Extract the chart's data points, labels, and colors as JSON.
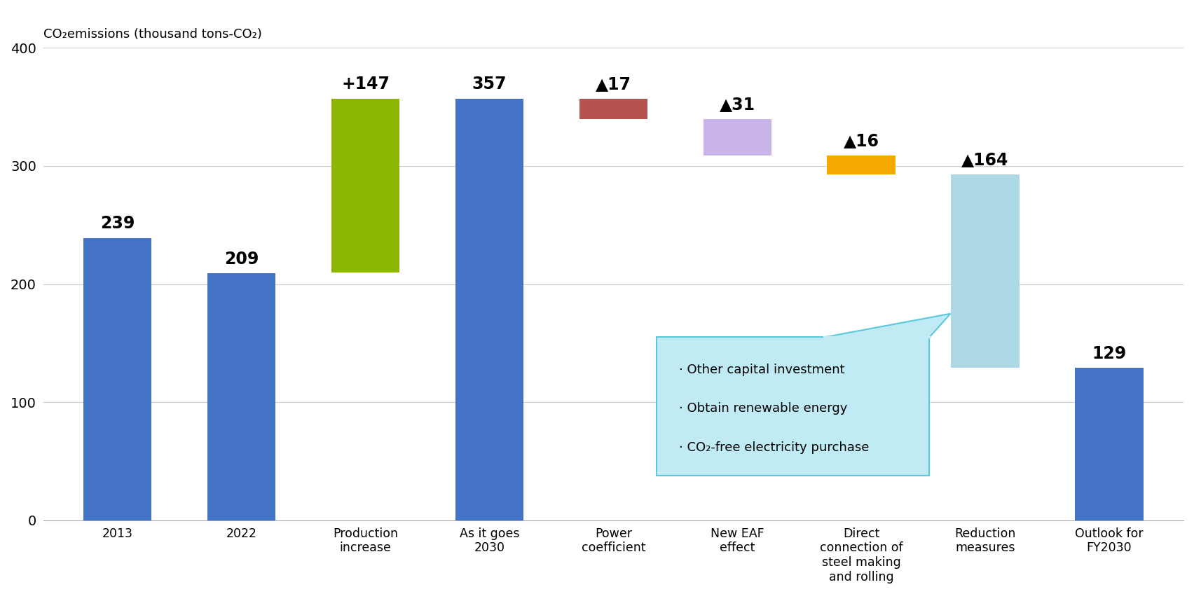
{
  "title": "CO₂emissions (thousand tons-CO₂)",
  "ylim": [
    0,
    400
  ],
  "yticks": [
    0,
    100,
    200,
    300,
    400
  ],
  "categories": [
    "2013",
    "2022",
    "Production\nincrease",
    "As it goes\n2030",
    "Power\ncoefficient",
    "New EAF\neffect",
    "Direct\nconnection of\nsteel making\nand rolling",
    "Reduction\nmeasures",
    "Outlook for\nFY2030"
  ],
  "bar_values": [
    239,
    209,
    147,
    357,
    17,
    31,
    16,
    164,
    129
  ],
  "bar_bottoms": [
    0,
    0,
    210,
    0,
    340,
    309,
    293,
    129,
    0
  ],
  "bar_colors": [
    "#4472C4",
    "#4472C4",
    "#8DB600",
    "#4472C4",
    "#B5534E",
    "#C8B4E8",
    "#F5A800",
    "#ADD8E6",
    "#4472C4"
  ],
  "value_labels": [
    "239",
    "209",
    "+147",
    "357",
    "▲17",
    "▲31",
    "▲16",
    "▲164",
    "129"
  ],
  "bg_color": "#FFFFFF",
  "grid_color": "#CCCCCC",
  "bar_width": 0.55,
  "annotation_text_lines": [
    "· Other capital investment",
    "· Obtain renewable energy",
    "· CO₂-free electricity purchase"
  ],
  "annotation_box_color": "#C0EBF5",
  "annotation_border_color": "#5BC8DC",
  "callout_line_color": "#5BC8DC"
}
